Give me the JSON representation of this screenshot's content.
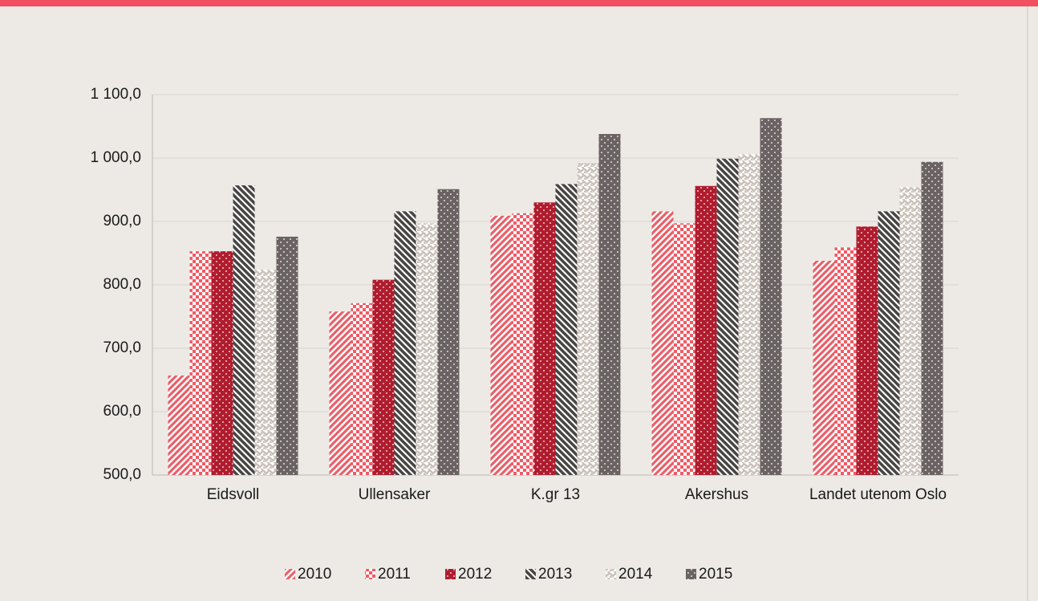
{
  "chart_data": {
    "type": "bar",
    "categories": [
      "Eidsvoll",
      "Ullensaker",
      "K.gr 13",
      "Akershus",
      "Landet utenom Oslo"
    ],
    "series": [
      {
        "name": "2010",
        "color": "#e8606a",
        "pattern": "diagonal",
        "values": [
          657,
          758,
          909,
          916,
          838
        ]
      },
      {
        "name": "2011",
        "color": "#f25a64",
        "pattern": "checker",
        "values": [
          853,
          771,
          913,
          897,
          859
        ]
      },
      {
        "name": "2012",
        "color": "#b01c2e",
        "pattern": "dots",
        "values": [
          853,
          808,
          930,
          956,
          892
        ]
      },
      {
        "name": "2013",
        "color": "#4a4545",
        "pattern": "diagonal-back",
        "values": [
          957,
          916,
          959,
          999,
          916
        ]
      },
      {
        "name": "2014",
        "color": "#c9c0b8",
        "pattern": "zigzag",
        "values": [
          824,
          897,
          992,
          1006,
          954
        ]
      },
      {
        "name": "2015",
        "color": "#6b6363",
        "pattern": "dots",
        "values": [
          876,
          951,
          1038,
          1063,
          994
        ]
      }
    ],
    "ylim": [
      500,
      1100
    ],
    "yticks": [
      {
        "value": 500,
        "label": "500,0"
      },
      {
        "value": 600,
        "label": "600,0"
      },
      {
        "value": 700,
        "label": "700,0"
      },
      {
        "value": 800,
        "label": "800,0"
      },
      {
        "value": 900,
        "label": "900,0"
      },
      {
        "value": 1000,
        "label": "1 000,0"
      },
      {
        "value": 1100,
        "label": "1 100,0"
      }
    ],
    "grid": true,
    "legend": "bottom"
  }
}
